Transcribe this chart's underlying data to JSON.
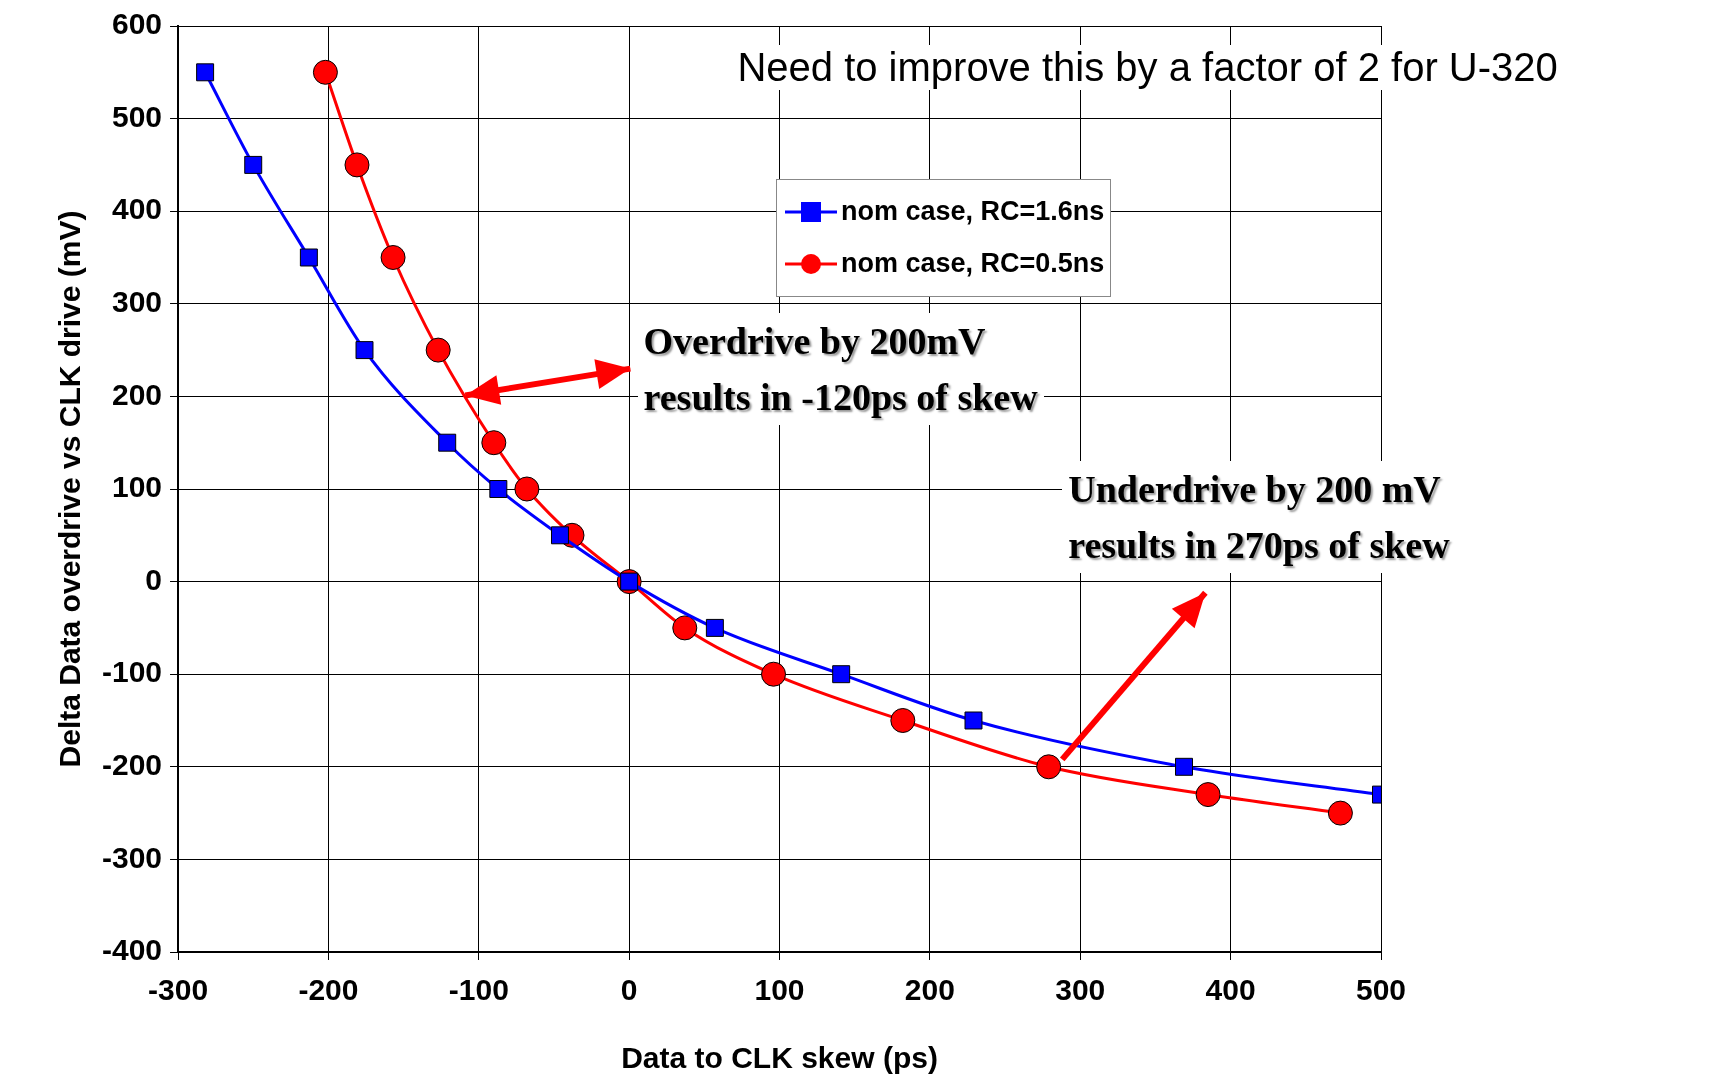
{
  "chart_data": {
    "type": "line",
    "xlabel": "Data to CLK skew (ps)",
    "ylabel": "Delta Data overdrive vs CLK drive (mV)",
    "xlim": [
      -300,
      500
    ],
    "xticks": [
      -300,
      -200,
      -100,
      0,
      100,
      200,
      300,
      400,
      500
    ],
    "ylim": [
      -400,
      600
    ],
    "yticks": [
      -400,
      -300,
      -200,
      -100,
      0,
      100,
      200,
      300,
      400,
      500,
      600
    ],
    "grid": true,
    "legend": "top right",
    "line_style": "solid",
    "series": [
      {
        "name": "nom case, RC=1.6ns",
        "color": "#0000ff",
        "marker": "square",
        "x": [
          -282,
          -250,
          -213,
          -176,
          -121,
          -87,
          -46,
          0,
          57,
          141,
          229,
          369,
          500
        ],
        "values": [
          550,
          450,
          350,
          250,
          150,
          100,
          50,
          0,
          -50,
          -100,
          -150,
          -200,
          -230
        ]
      },
      {
        "name": "nom case, RC=0.5ns",
        "color": "#ff0000",
        "marker": "circle",
        "x": [
          -202,
          -181,
          -157,
          -127,
          -90,
          -68,
          -38,
          0,
          37,
          96,
          182,
          279,
          385,
          473
        ],
        "values": [
          550,
          450,
          350,
          250,
          150,
          100,
          50,
          0,
          -50,
          -100,
          -150,
          -200,
          -230,
          -250
        ]
      }
    ],
    "annotations": [
      "Need to improve this by a factor of 2 for U-320",
      {
        "text": "Overdrive by 200mV\nresults in -120ps of skew",
        "x": -109,
        "y": 201
      },
      {
        "text": "Underdrive by 200 mV\nresults in 270ps of skew",
        "x": 288,
        "y": -192
      }
    ]
  }
}
